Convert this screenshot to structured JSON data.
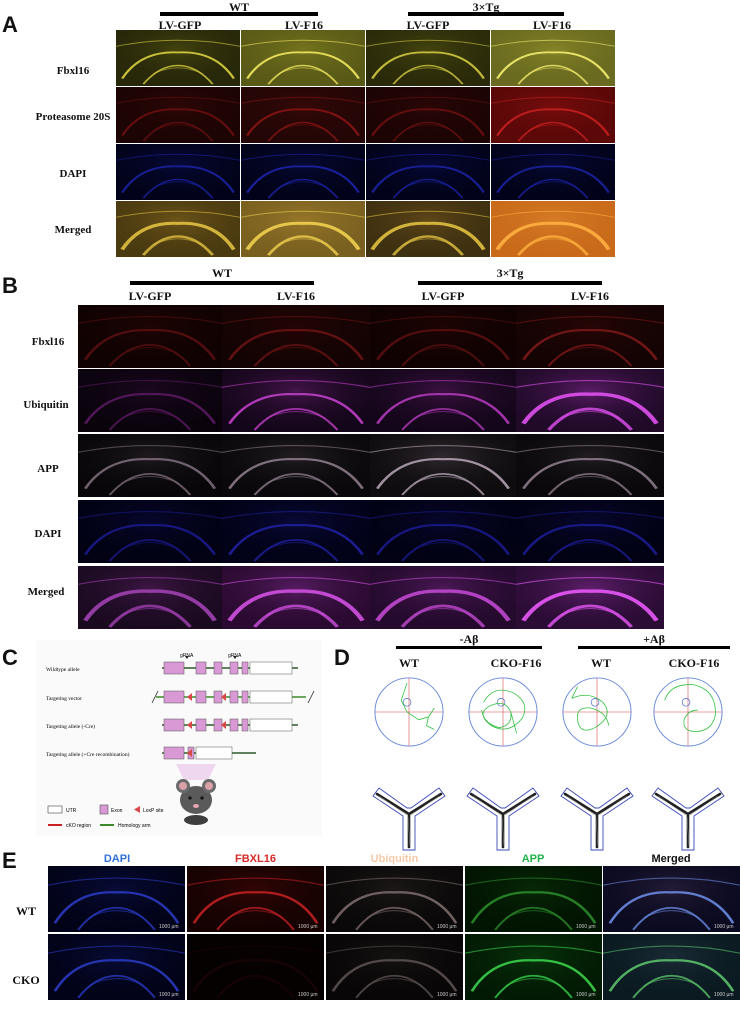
{
  "panelA": {
    "label": "A",
    "groups": [
      "WT",
      "3×Tg"
    ],
    "columns": [
      "LV-GFP",
      "LV-F16",
      "LV-GFP",
      "LV-F16"
    ],
    "rows": [
      "Fbxl16",
      "Proteasome 20S",
      "DAPI",
      "Merged"
    ]
  },
  "panelB": {
    "label": "B",
    "groups": [
      "WT",
      "3×Tg"
    ],
    "columns": [
      "LV-GFP",
      "LV-F16",
      "LV-GFP",
      "LV-F16"
    ],
    "rows": [
      "Fbxl16",
      "Ubiquitin",
      "APP",
      "DAPI",
      "Merged"
    ]
  },
  "panelC": {
    "label": "C",
    "rows": [
      "Wildtype allele",
      "Targeting vector",
      "Targeting allele (-Cre)",
      "Targeting allele (+Cre recombination)"
    ],
    "grna": [
      "gRNA",
      "gRNA"
    ],
    "legend": {
      "utr": "UTR",
      "exon": "Exon",
      "loxp": "LoxP site",
      "cko": "cKO region",
      "homology": "Homology arm"
    }
  },
  "panelD": {
    "label": "D",
    "groups": [
      "-Aβ",
      "+Aβ"
    ],
    "columns": [
      "WT",
      "CKO-F16",
      "WT",
      "CKO-F16"
    ]
  },
  "panelE": {
    "label": "E",
    "columns": [
      "DAPI",
      "FBXL16",
      "Ubiquitin",
      "APP",
      "Merged"
    ],
    "column_colors": [
      "#2f6fd6",
      "#d42a2a",
      "#f4c9a8",
      "#22b34a",
      "#111111"
    ],
    "rows": [
      "WT",
      "CKO"
    ],
    "scale": "1000 μm"
  }
}
